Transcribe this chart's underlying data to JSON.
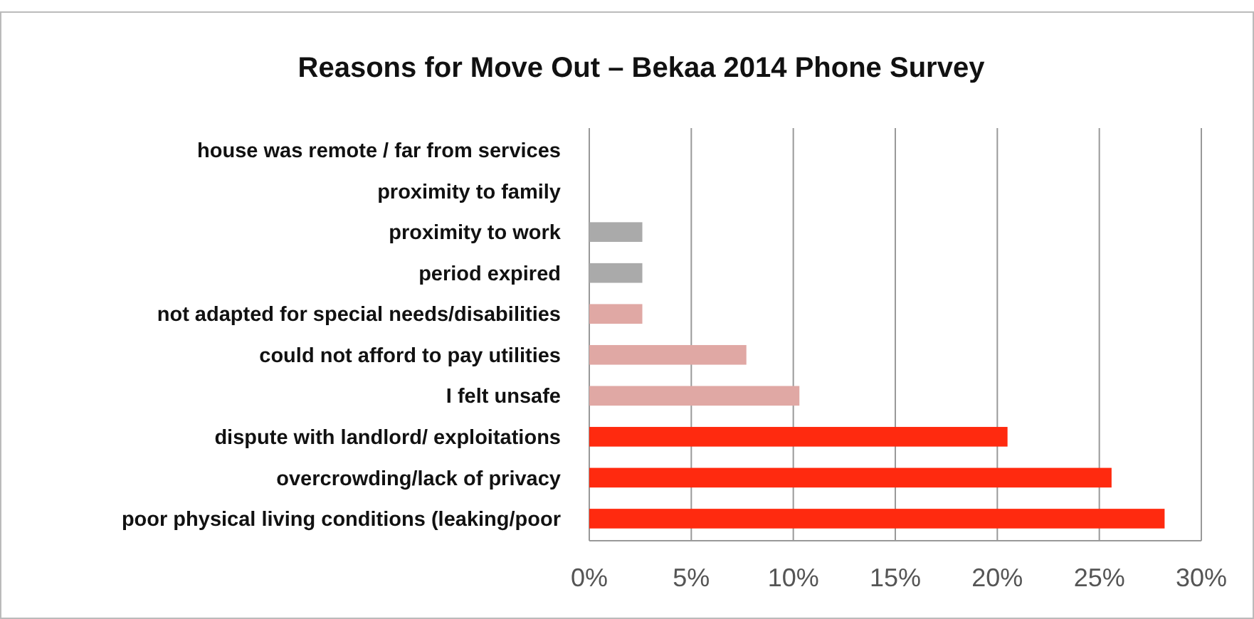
{
  "chart_data": {
    "type": "bar",
    "orientation": "horizontal",
    "title": "Reasons for Move Out – Bekaa 2014 Phone Survey",
    "categories": [
      "house was remote / far from services",
      "proximity to family",
      "proximity to work",
      "period expired",
      "not adapted for special needs/disabilities",
      "could not afford to pay utilities",
      "I felt unsafe",
      "dispute with landlord/ exploitations",
      "overcrowding/lack of privacy",
      "poor physical living conditions (leaking/poor"
    ],
    "values": [
      0,
      0,
      2.6,
      2.6,
      2.6,
      7.7,
      10.3,
      20.5,
      25.6,
      28.2
    ],
    "colors": [
      "#aaaaaa",
      "#aaaaaa",
      "#aaaaaa",
      "#aaaaaa",
      "#e0a8a4",
      "#e0a8a4",
      "#e0a8a4",
      "#ff2a0f",
      "#ff2a0f",
      "#ff2a0f"
    ],
    "xlim": [
      0,
      30
    ],
    "xticks": [
      {
        "value": 0,
        "label": "0%"
      },
      {
        "value": 5,
        "label": "5%"
      },
      {
        "value": 10,
        "label": "10%"
      },
      {
        "value": 15,
        "label": "15%"
      },
      {
        "value": 20,
        "label": "20%"
      },
      {
        "value": 25,
        "label": "25%"
      },
      {
        "value": 30,
        "label": "30%"
      }
    ],
    "grid": "x"
  }
}
